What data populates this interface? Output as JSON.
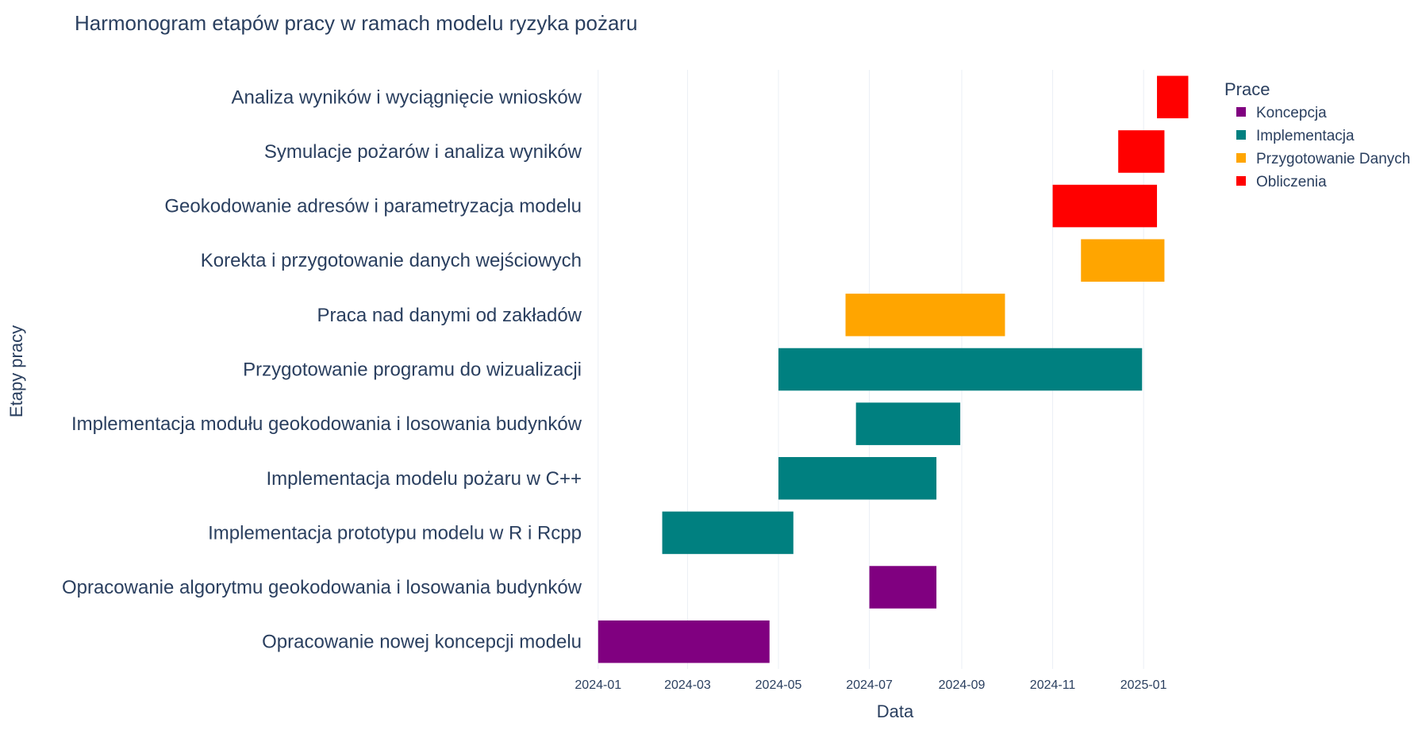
{
  "chart_data": {
    "type": "gantt",
    "title": "Harmonogram etapów pracy w ramach modelu ryzyka pożaru",
    "xlabel": "Data",
    "ylabel": "Etapy pracy",
    "x_ticks": [
      "2024-01",
      "2024-03",
      "2024-05",
      "2024-07",
      "2024-09",
      "2024-11",
      "2025-01"
    ],
    "x_range": [
      "2023-12-22",
      "2025-02-12"
    ],
    "grid": true,
    "legend": {
      "title": "Prace",
      "placement": "top-right",
      "items": [
        {
          "name": "Koncepcja",
          "color": "#800080"
        },
        {
          "name": "Implementacja",
          "color": "#008080"
        },
        {
          "name": "Przygotowanie Danych",
          "color": "#FFA500"
        },
        {
          "name": "Obliczenia",
          "color": "#FF0000"
        }
      ]
    },
    "tasks": [
      {
        "task": "Analiza wyników i wyciągnięcie wniosków",
        "category": "Obliczenia",
        "start": "2025-01-10",
        "end": "2025-01-31"
      },
      {
        "task": "Symulacje pożarów i analiza wyników",
        "category": "Obliczenia",
        "start": "2024-12-15",
        "end": "2025-01-15"
      },
      {
        "task": "Geokodowanie adresów i parametryzacja modelu",
        "category": "Obliczenia",
        "start": "2024-11-01",
        "end": "2025-01-10"
      },
      {
        "task": "Korekta i przygotowanie danych wejściowych",
        "category": "Przygotowanie Danych",
        "start": "2024-11-20",
        "end": "2025-01-15"
      },
      {
        "task": "Praca nad danymi od zakładów",
        "category": "Przygotowanie Danych",
        "start": "2024-06-15",
        "end": "2024-09-30"
      },
      {
        "task": "Przygotowanie programu do wizualizacji",
        "category": "Implementacja",
        "start": "2024-05-01",
        "end": "2024-12-31"
      },
      {
        "task": "Implementacja modułu geokodowania i losowania budynków",
        "category": "Implementacja",
        "start": "2024-06-22",
        "end": "2024-08-31"
      },
      {
        "task": "Implementacja modelu pożaru w C++",
        "category": "Implementacja",
        "start": "2024-05-01",
        "end": "2024-08-15"
      },
      {
        "task": "Implementacja prototypu modelu w R i Rcpp",
        "category": "Implementacja",
        "start": "2024-02-13",
        "end": "2024-05-11"
      },
      {
        "task": "Opracowanie algorytmu geokodowania i losowania budynków",
        "category": "Koncepcja",
        "start": "2024-07-01",
        "end": "2024-08-15"
      },
      {
        "task": "Opracowanie nowej koncepcji modelu",
        "category": "Koncepcja",
        "start": "2024-01-01",
        "end": "2024-04-25"
      }
    ]
  }
}
